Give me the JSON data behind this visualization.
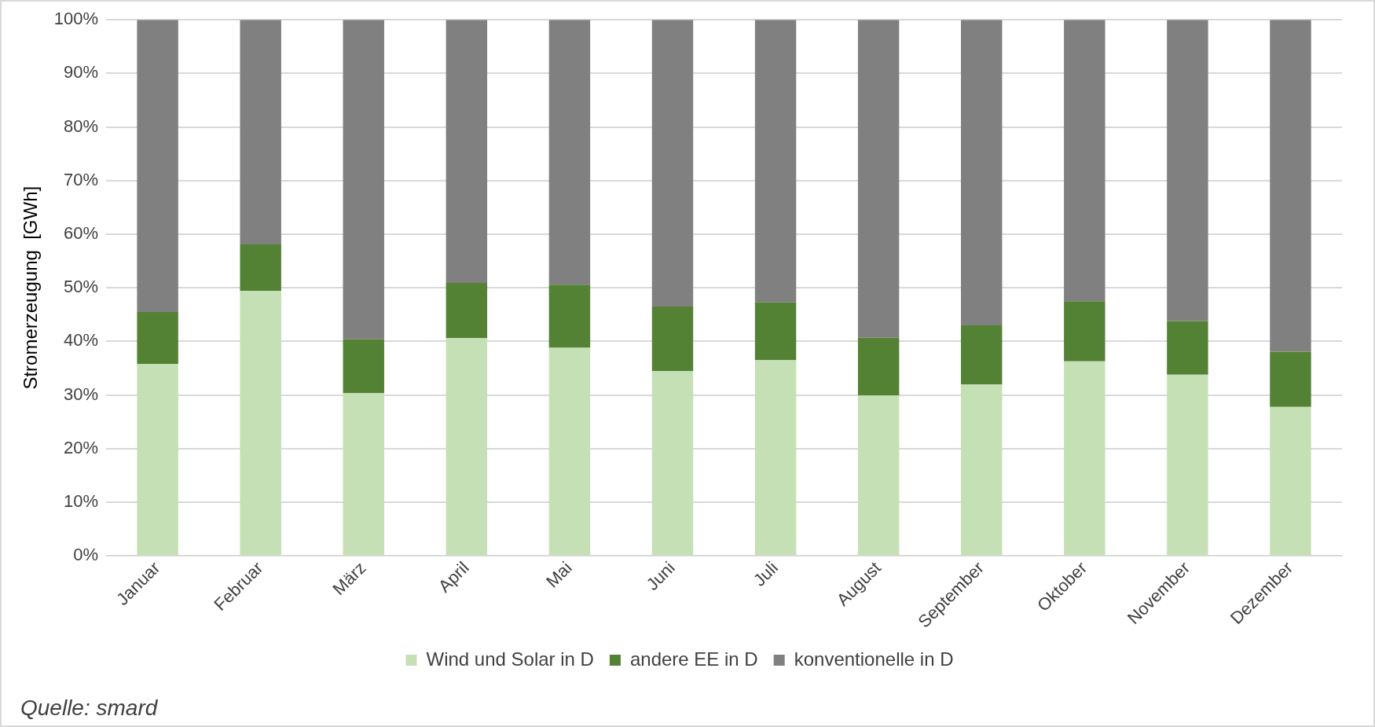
{
  "chart_data": {
    "type": "bar",
    "stacked": true,
    "ylabel": "Stromerzeugung  [GWh]",
    "categories": [
      "Januar",
      "Februar",
      "März",
      "April",
      "Mai",
      "Juni",
      "Juli",
      "August",
      "September",
      "Oktober",
      "November",
      "Dezember"
    ],
    "series": [
      {
        "name": "Wind und Solar in D",
        "color": "#c5e0b4",
        "values": [
          35.8,
          49.4,
          30.4,
          40.6,
          38.8,
          34.5,
          36.5,
          29.9,
          32.0,
          36.3,
          33.8,
          27.8
        ]
      },
      {
        "name": "andere EE in D",
        "color": "#548235",
        "values": [
          9.7,
          8.7,
          10.0,
          10.3,
          11.8,
          12.0,
          10.8,
          10.8,
          11.0,
          11.2,
          10.0,
          10.3
        ]
      },
      {
        "name": "konventionelle in D",
        "color": "#808080",
        "values": [
          54.5,
          41.9,
          59.6,
          49.1,
          49.4,
          53.5,
          52.7,
          59.3,
          57.0,
          52.5,
          56.2,
          61.9
        ]
      }
    ],
    "ylim": [
      0,
      100
    ],
    "yticks": [
      {
        "value": 0,
        "label": "0%"
      },
      {
        "value": 10,
        "label": "10%"
      },
      {
        "value": 20,
        "label": "20%"
      },
      {
        "value": 30,
        "label": "30%"
      },
      {
        "value": 40,
        "label": "40%"
      },
      {
        "value": 50,
        "label": "50%"
      },
      {
        "value": 60,
        "label": "60%"
      },
      {
        "value": 70,
        "label": "70%"
      },
      {
        "value": 80,
        "label": "80%"
      },
      {
        "value": 90,
        "label": "90%"
      },
      {
        "value": 100,
        "label": "100%"
      }
    ],
    "grid": "y",
    "legend": "bottom",
    "annotations": [
      "Quelle: smard"
    ]
  }
}
